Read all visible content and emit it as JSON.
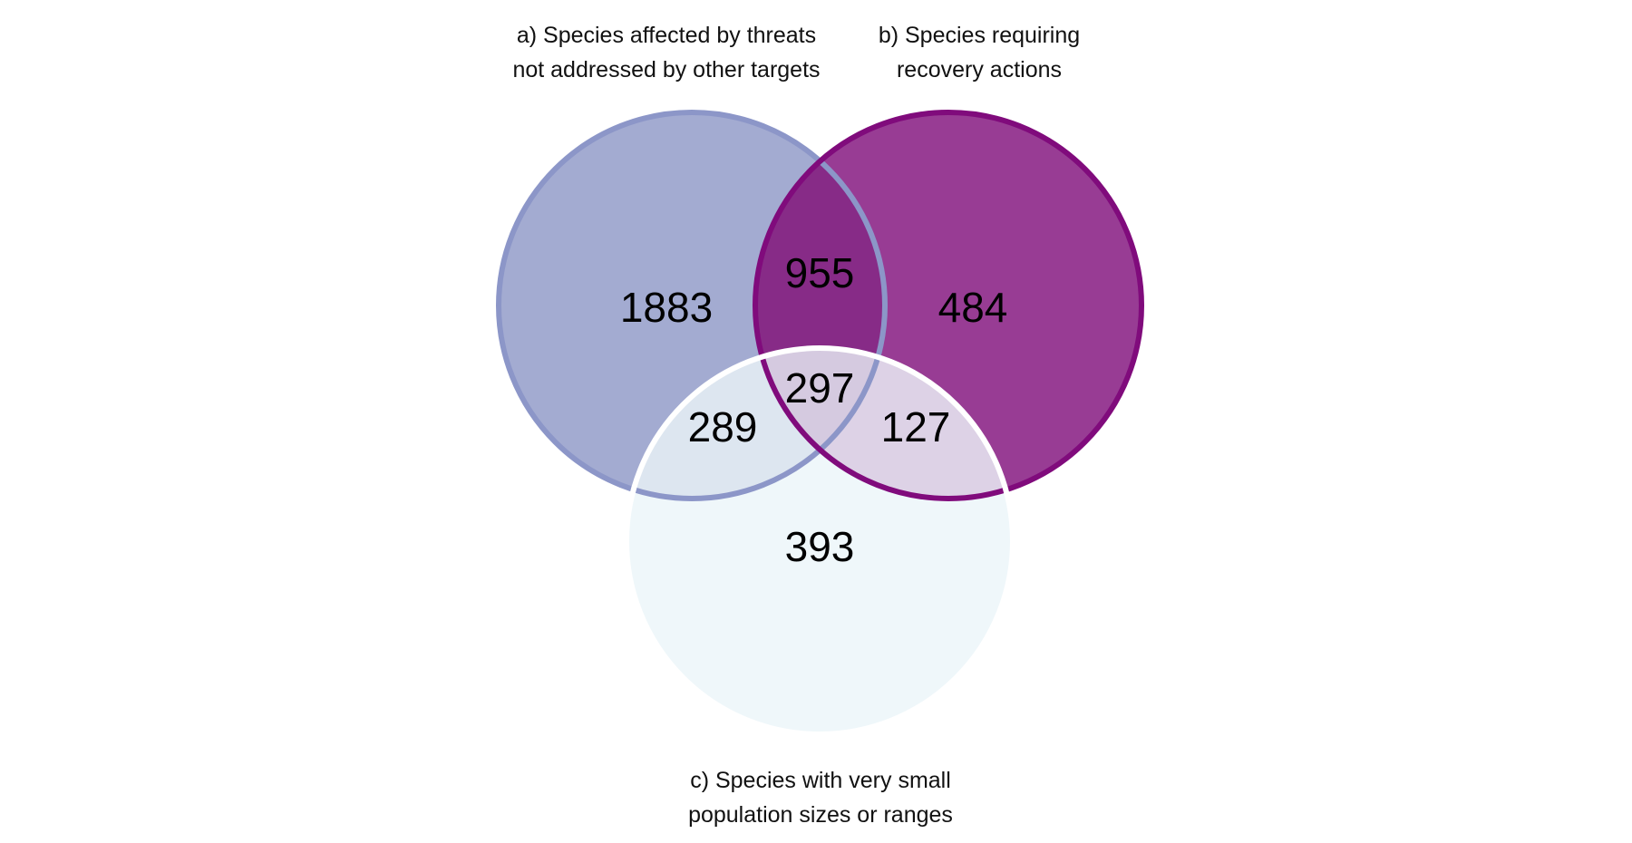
{
  "sets": {
    "a": {
      "label_line1": "a) Species affected by threats",
      "label_line2": "not addressed by other targets",
      "fill_color": "#a3abd1",
      "stroke_color": "#8c96c8"
    },
    "b": {
      "label_line1": "b) Species requiring",
      "label_line2": "recovery actions",
      "fill_color": "#983c94",
      "stroke_color": "#800b7c"
    },
    "c": {
      "label_line1": "c) Species with very small",
      "label_line2": "population sizes or ranges",
      "fill_color": "#eff7fa",
      "stroke_color": "#ffffff"
    }
  },
  "regions": {
    "a_only": "1883",
    "b_only": "484",
    "c_only": "393",
    "ab_only": "955",
    "ac_only": "289",
    "bc_only": "127",
    "abc": "297"
  },
  "region_colors": {
    "ab": "#872b87",
    "ac": "#dde6f0",
    "bc": "#ddd2e6",
    "abc": "#d5cae0"
  }
}
